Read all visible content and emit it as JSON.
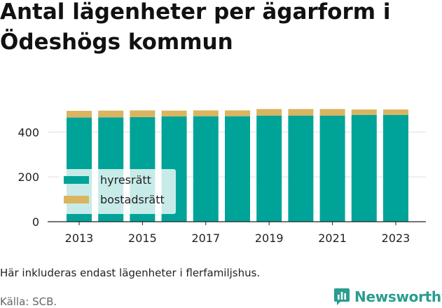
{
  "title": "Antal lägenheter per ägarform i Ödeshögs kommun",
  "note": "Här inkluderas endast lägenheter i flerfamiljshus.",
  "source": "Källa: SCB.",
  "brand": "Newsworthy",
  "brand_icon": "bar-chart-logo-icon",
  "colors": {
    "hyresratt": "#00a398",
    "bostadsratt": "#dbb460",
    "grid": "#dddddd",
    "brand": "#2a9d8f"
  },
  "chart_data": {
    "type": "bar",
    "stacked": true,
    "categories": [
      "2013",
      "2014",
      "2015",
      "2016",
      "2017",
      "2018",
      "2019",
      "2020",
      "2021",
      "2022",
      "2023"
    ],
    "x_tick_labels": [
      "2013",
      "2015",
      "2017",
      "2019",
      "2021",
      "2023"
    ],
    "y_ticks": [
      0,
      200,
      400
    ],
    "ylim": [
      0,
      520
    ],
    "grid": true,
    "legend_position": "inside-left",
    "series": [
      {
        "name": "hyresrätt",
        "values": [
          465,
          466,
          467,
          470,
          471,
          471,
          474,
          474,
          474,
          477,
          477
        ]
      },
      {
        "name": "bostadsrätt",
        "values": [
          30,
          30,
          30,
          26,
          26,
          26,
          29,
          29,
          29,
          24,
          24
        ]
      }
    ]
  }
}
